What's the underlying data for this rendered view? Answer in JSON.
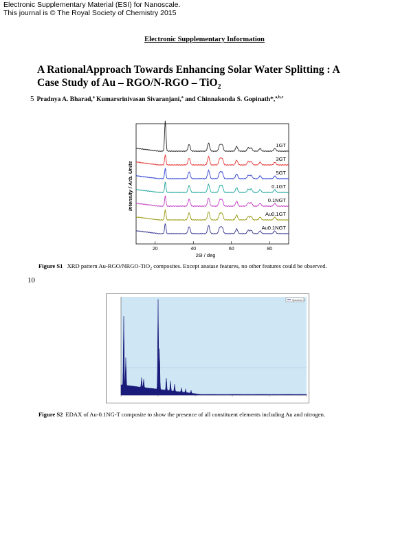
{
  "header": {
    "line1": "Electronic Supplementary Material (ESI) for Nanoscale.",
    "line2": "This journal is © The Royal Society of Chemistry 2015"
  },
  "esi_heading": "Electronic Supplementary Information",
  "title": {
    "line1": "A RationalApproach Towards Enhancing Solar Water Splitting : A",
    "line2_main": "Case Study of Au – RGO/N-RGO – TiO",
    "line2_sub": "2"
  },
  "authors": {
    "line_number": "5",
    "a1": "Pradnya A. Bharad,",
    "a1_sup": "a",
    "a2": " Kumarsrinivasan Sivaranjani,",
    "a2_sup": "a",
    "a3": " and Chinnakonda S. Gopinath*,",
    "a3_sup": "a,b,c"
  },
  "figure_s1": {
    "label": "Figure S1",
    "caption_pre": " XRD pattern Au-RGO/NRGO-TiO",
    "caption_sub": "2",
    "caption_post": " composites. Except anatase features, no other features could be observed."
  },
  "line_number_10": "10",
  "figure_s2": {
    "label": "Figure S2",
    "caption": "EDAX of Au-0.1NG-T composite to show the presence of all constituent elements including Au and nitrogen."
  },
  "chart_data": [
    {
      "type": "line",
      "xlabel": "2Θ / deg",
      "ylabel": "Intensity / Arb. Units",
      "x_ticks": [
        "20",
        "40",
        "60",
        "80"
      ],
      "xlim": [
        10,
        90
      ],
      "series": [
        {
          "name": "1GT",
          "color": "#222222"
        },
        {
          "name": "3GT",
          "color": "#e53030"
        },
        {
          "name": "5GT",
          "color": "#2b3fd0"
        },
        {
          "name": "0.1GT",
          "color": "#1aa39a"
        },
        {
          "name": "0.1NGT",
          "color": "#c23ac2"
        },
        {
          "name": "Au0.1GT",
          "color": "#9a9a10"
        },
        {
          "name": "Au0.1NGT",
          "color": "#303090"
        }
      ],
      "peaks_2theta": [
        25.3,
        37.8,
        48.0,
        53.9,
        55.1,
        62.7,
        68.8,
        70.3,
        75.0,
        82.7
      ]
    },
    {
      "type": "line",
      "legend": "Spectrum 1",
      "background": "#cfe6f5",
      "line_color": "#1a1a7a"
    }
  ]
}
